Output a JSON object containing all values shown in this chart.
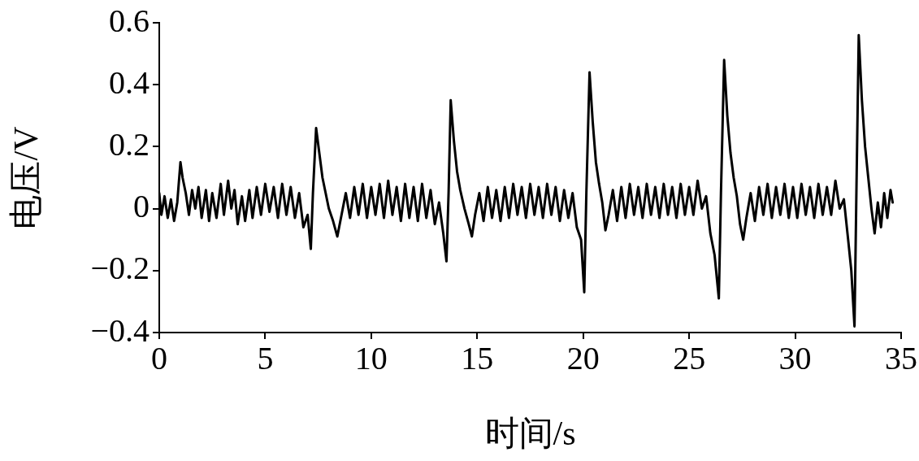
{
  "chart_data": {
    "type": "line",
    "xlabel": "时间/s",
    "ylabel": "电压/V",
    "xlim": [
      0,
      35
    ],
    "xticks": [
      0,
      5,
      10,
      15,
      20,
      25,
      30,
      35
    ],
    "ylim": [
      -0.4,
      0.6
    ],
    "yticks": [
      {
        "value": -0.4,
        "label": "−0.4"
      },
      {
        "value": -0.2,
        "label": "−0.2"
      },
      0,
      0.2,
      0.4,
      0.6
    ],
    "grid": false,
    "legend": false,
    "marker": "none",
    "line_style": "solid",
    "series": [
      {
        "color": "#000000",
        "x": [
          0,
          0.1,
          0.25,
          0.4,
          0.55,
          0.7,
          0.85,
          1.0,
          1.1,
          1.25,
          1.4,
          1.55,
          1.7,
          1.85,
          2.0,
          2.2,
          2.35,
          2.5,
          2.7,
          2.9,
          3.05,
          3.25,
          3.4,
          3.55,
          3.7,
          3.9,
          4.05,
          4.25,
          4.4,
          4.6,
          4.8,
          5.0,
          5.2,
          5.4,
          5.6,
          5.8,
          6.0,
          6.2,
          6.4,
          6.6,
          6.8,
          7.0,
          7.15,
          7.25,
          7.4,
          7.55,
          7.7,
          7.85,
          8.0,
          8.2,
          8.4,
          8.6,
          8.8,
          9.0,
          9.2,
          9.4,
          9.6,
          9.8,
          10.0,
          10.2,
          10.4,
          10.6,
          10.8,
          11.0,
          11.2,
          11.4,
          11.6,
          11.8,
          12.0,
          12.2,
          12.4,
          12.6,
          12.8,
          13.0,
          13.2,
          13.4,
          13.55,
          13.65,
          13.75,
          13.9,
          14.05,
          14.2,
          14.4,
          14.6,
          14.75,
          14.9,
          15.1,
          15.3,
          15.5,
          15.7,
          15.9,
          16.1,
          16.3,
          16.5,
          16.7,
          16.9,
          17.1,
          17.3,
          17.5,
          17.7,
          17.9,
          18.1,
          18.3,
          18.5,
          18.7,
          18.9,
          19.1,
          19.3,
          19.5,
          19.7,
          19.9,
          20.05,
          20.15,
          20.3,
          20.45,
          20.6,
          20.75,
          20.9,
          21.05,
          21.2,
          21.4,
          21.6,
          21.8,
          22.0,
          22.2,
          22.4,
          22.6,
          22.8,
          23.0,
          23.2,
          23.4,
          23.6,
          23.8,
          24.0,
          24.2,
          24.4,
          24.6,
          24.8,
          25.0,
          25.2,
          25.4,
          25.6,
          25.8,
          26.0,
          26.2,
          26.4,
          26.5,
          26.65,
          26.8,
          26.95,
          27.1,
          27.25,
          27.4,
          27.55,
          27.7,
          27.9,
          28.1,
          28.3,
          28.5,
          28.7,
          28.9,
          29.1,
          29.3,
          29.5,
          29.7,
          29.9,
          30.1,
          30.3,
          30.5,
          30.7,
          30.9,
          31.1,
          31.3,
          31.5,
          31.7,
          31.9,
          32.1,
          32.3,
          32.5,
          32.65,
          32.8,
          32.9,
          33.0,
          33.15,
          33.3,
          33.45,
          33.6,
          33.75,
          33.9,
          34.05,
          34.2,
          34.35,
          34.5,
          34.6
        ],
        "values": [
          0.05,
          -0.02,
          0.04,
          -0.03,
          0.03,
          -0.04,
          0.02,
          0.15,
          0.1,
          0.05,
          -0.02,
          0.06,
          0.0,
          0.07,
          -0.03,
          0.06,
          -0.04,
          0.05,
          -0.03,
          0.08,
          -0.02,
          0.09,
          0.0,
          0.06,
          -0.05,
          0.04,
          -0.04,
          0.06,
          -0.03,
          0.07,
          -0.02,
          0.08,
          -0.01,
          0.07,
          -0.03,
          0.08,
          -0.02,
          0.07,
          -0.03,
          0.05,
          -0.06,
          -0.02,
          -0.13,
          0.05,
          0.26,
          0.18,
          0.1,
          0.05,
          0.0,
          -0.04,
          -0.09,
          -0.02,
          0.05,
          -0.03,
          0.07,
          -0.02,
          0.08,
          -0.03,
          0.07,
          -0.02,
          0.08,
          -0.03,
          0.09,
          -0.02,
          0.07,
          -0.04,
          0.08,
          -0.03,
          0.07,
          -0.04,
          0.08,
          -0.03,
          0.06,
          -0.05,
          0.02,
          -0.08,
          -0.17,
          0.05,
          0.35,
          0.22,
          0.12,
          0.06,
          0.0,
          -0.05,
          -0.09,
          -0.02,
          0.05,
          -0.04,
          0.07,
          -0.03,
          0.06,
          -0.04,
          0.07,
          -0.03,
          0.08,
          -0.02,
          0.07,
          -0.03,
          0.08,
          -0.02,
          0.07,
          -0.03,
          0.08,
          -0.02,
          0.07,
          -0.04,
          0.06,
          -0.03,
          0.05,
          -0.06,
          -0.1,
          -0.27,
          0.05,
          0.44,
          0.28,
          0.15,
          0.08,
          0.02,
          -0.07,
          -0.02,
          0.06,
          -0.04,
          0.07,
          -0.03,
          0.08,
          -0.02,
          0.07,
          -0.03,
          0.08,
          -0.02,
          0.07,
          -0.03,
          0.08,
          -0.02,
          0.07,
          -0.03,
          0.08,
          -0.02,
          0.07,
          -0.02,
          0.09,
          0.0,
          0.04,
          -0.08,
          -0.15,
          -0.29,
          0.05,
          0.48,
          0.3,
          0.18,
          0.1,
          0.04,
          -0.05,
          -0.1,
          -0.03,
          0.05,
          -0.04,
          0.07,
          -0.02,
          0.08,
          -0.03,
          0.07,
          -0.02,
          0.08,
          -0.03,
          0.07,
          -0.03,
          0.08,
          -0.02,
          0.07,
          -0.03,
          0.08,
          -0.02,
          0.07,
          -0.02,
          0.09,
          0.0,
          0.03,
          -0.1,
          -0.2,
          -0.38,
          0.1,
          0.56,
          0.35,
          0.2,
          0.1,
          0.0,
          -0.08,
          0.02,
          -0.06,
          0.05,
          -0.03,
          0.06,
          0.02
        ]
      }
    ]
  }
}
